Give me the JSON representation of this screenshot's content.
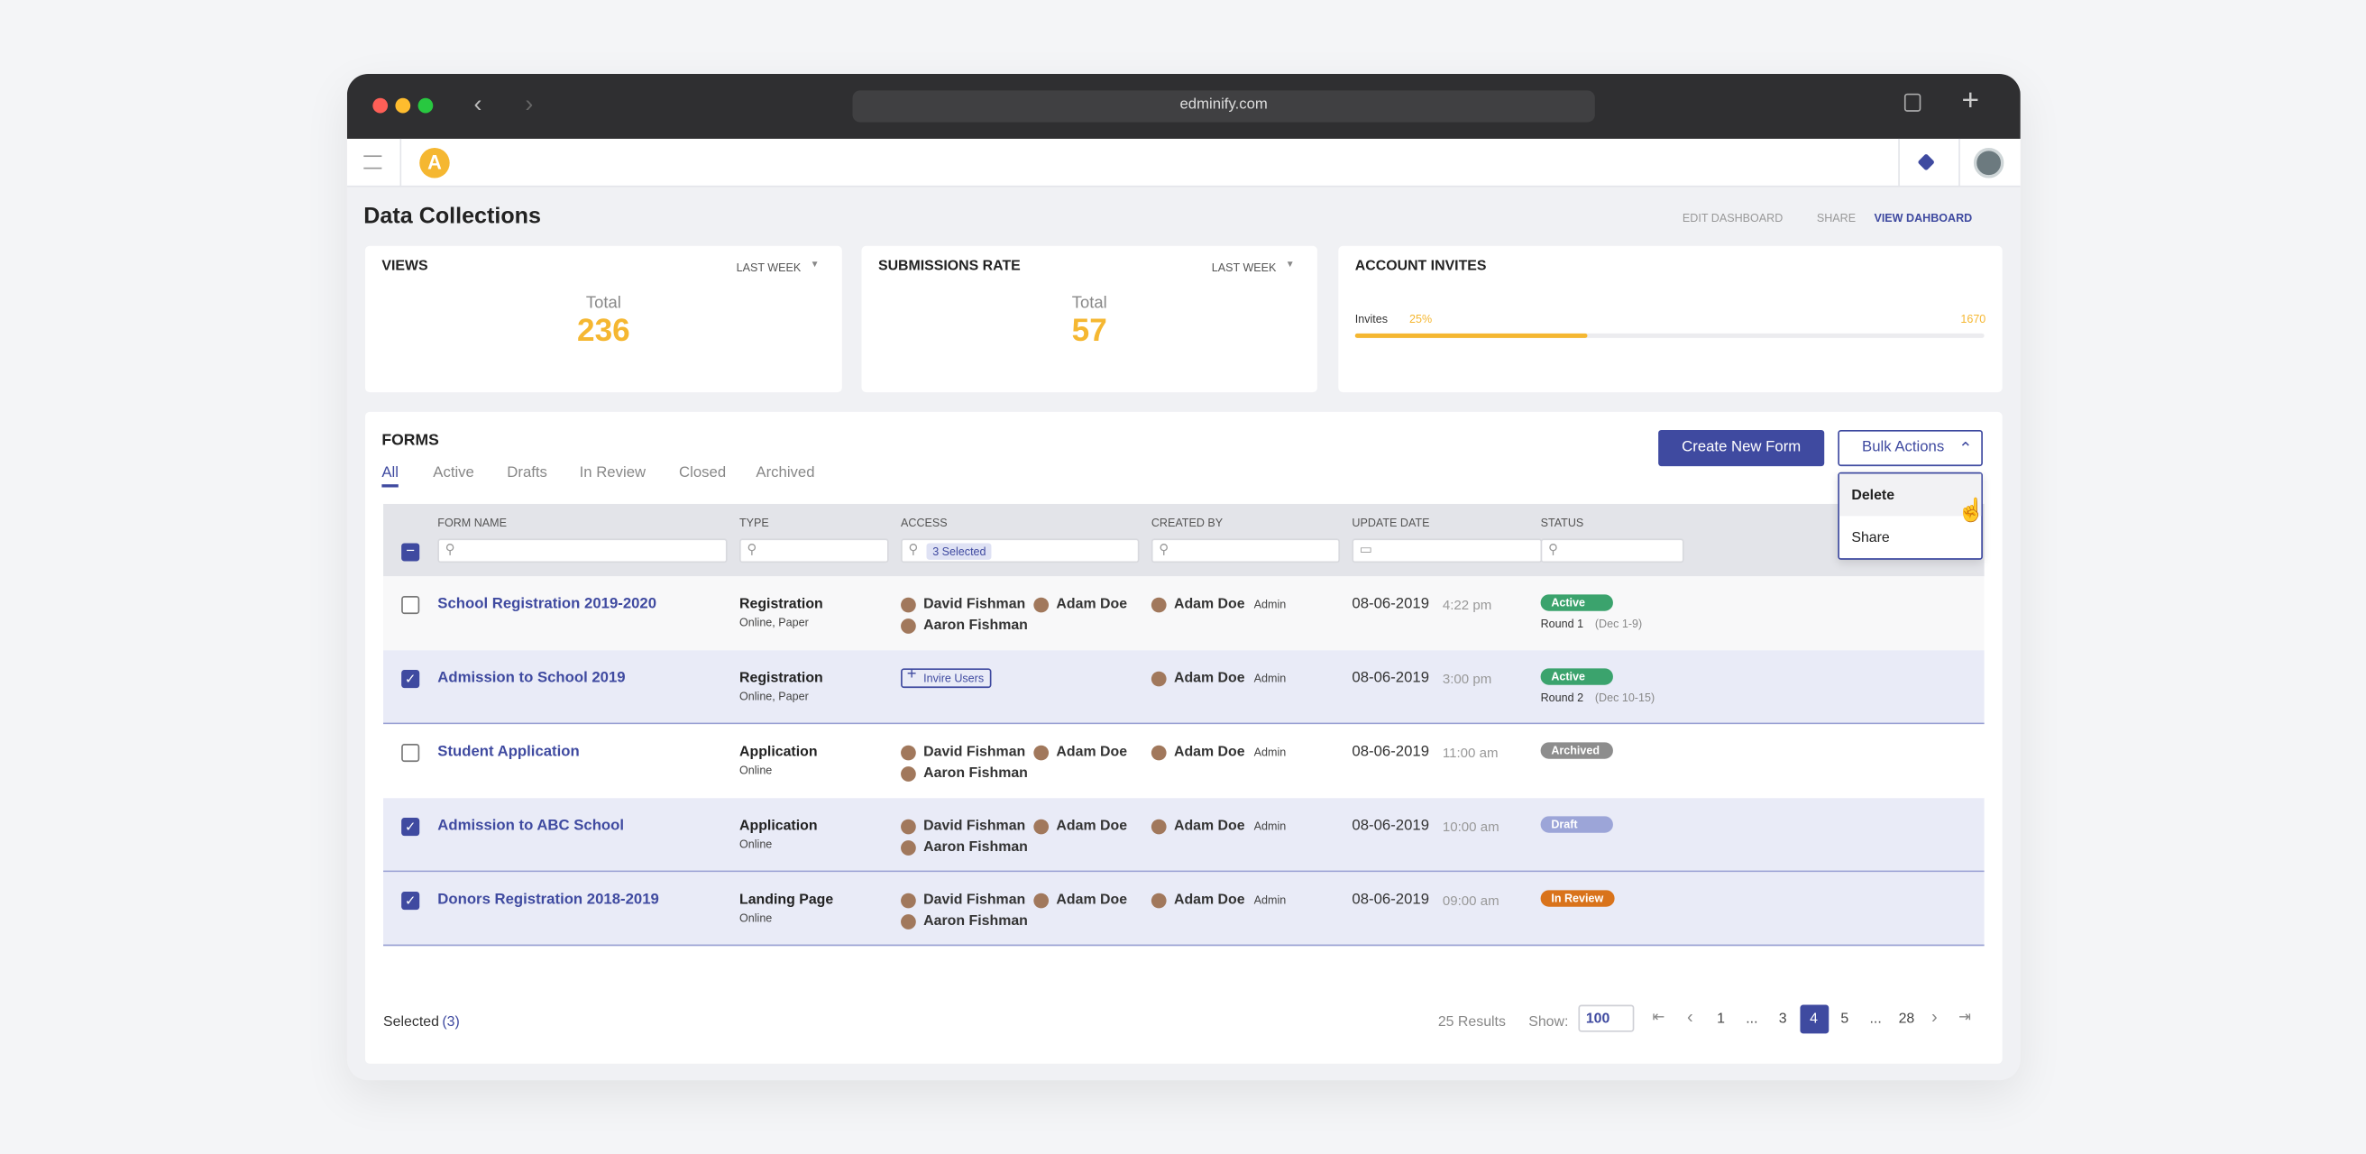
{
  "browser": {
    "url": "edminify.com"
  },
  "header": {
    "logo": "A",
    "title": "Data Collections",
    "actions": [
      "EDIT DASHBOARD",
      "SHARE",
      "VIEW DAHBOARD"
    ]
  },
  "stats": {
    "views": {
      "title": "VIEWS",
      "period": "LAST WEEK",
      "label": "Total",
      "value": 236
    },
    "submissions": {
      "title": "SUBMISSIONS RATE",
      "period": "LAST WEEK",
      "label": "Total",
      "value": 57
    },
    "invites": {
      "title": "ACCOUNT INVITES",
      "label": "Invites",
      "percent": "25%",
      "total": 1670
    }
  },
  "forms": {
    "title": "FORMS",
    "tabs": [
      "All",
      "Active",
      "Drafts",
      "In Review",
      "Closed",
      "Archived"
    ],
    "create_button": "Create New Form",
    "bulk_button": "Bulk Actions",
    "bulk_menu": [
      "Delete",
      "Share"
    ],
    "columns": [
      "FORM NAME",
      "TYPE",
      "ACCESS",
      "CREATED BY",
      "UPDATE DATE",
      "STATUS"
    ],
    "access_filter": "3 Selected",
    "rows": [
      {
        "checked": false,
        "name": "School Registration 2019-2020",
        "type": "Registration",
        "channels": "Online, Paper",
        "access": [
          "David Fishman",
          "Adam Doe",
          "Aaron Fishman"
        ],
        "created_by": "Adam Doe",
        "role": "Admin",
        "date": "08-06-2019",
        "time": "4:22 pm",
        "status": "Active",
        "status_color": "#3ba36d",
        "round": "Round 1",
        "round_dates": "(Dec 1-9)"
      },
      {
        "checked": true,
        "name": "Admission to School 2019",
        "type": "Registration",
        "channels": "Online, Paper",
        "invite": "Invire Users",
        "created_by": "Adam Doe",
        "role": "Admin",
        "date": "08-06-2019",
        "time": "3:00 pm",
        "status": "Active",
        "status_color": "#3ba36d",
        "round": "Round 2",
        "round_dates": "(Dec 10-15)"
      },
      {
        "checked": false,
        "name": "Student Application",
        "type": "Application",
        "channels": "Online",
        "access": [
          "David Fishman",
          "Adam Doe",
          "Aaron Fishman"
        ],
        "created_by": "Adam Doe",
        "role": "Admin",
        "date": "08-06-2019",
        "time": "11:00 am",
        "status": "Archived",
        "status_color": "#8d8d8d"
      },
      {
        "checked": true,
        "name": "Admission to ABC School",
        "type": "Application",
        "channels": "Online",
        "access": [
          "David Fishman",
          "Adam Doe",
          "Aaron Fishman"
        ],
        "created_by": "Adam Doe",
        "role": "Admin",
        "date": "08-06-2019",
        "time": "10:00 am",
        "status": "Draft",
        "status_color": "#9ca5d8"
      },
      {
        "checked": true,
        "name": "Donors Registration 2018-2019",
        "type": "Landing Page",
        "channels": "Online",
        "access": [
          "David Fishman",
          "Adam Doe",
          "Aaron Fishman"
        ],
        "created_by": "Adam Doe",
        "role": "Admin",
        "date": "08-06-2019",
        "time": "09:00 am",
        "status": "In Review",
        "status_color": "#d9731b"
      }
    ]
  },
  "footer": {
    "selected_label": "Selected",
    "selected_count": "(3)",
    "results": "25 Results",
    "show_label": "Show:",
    "show_value": 100,
    "pages": [
      "1",
      "...",
      "3",
      "4",
      "5",
      "...",
      "28"
    ],
    "current_page": "4"
  }
}
